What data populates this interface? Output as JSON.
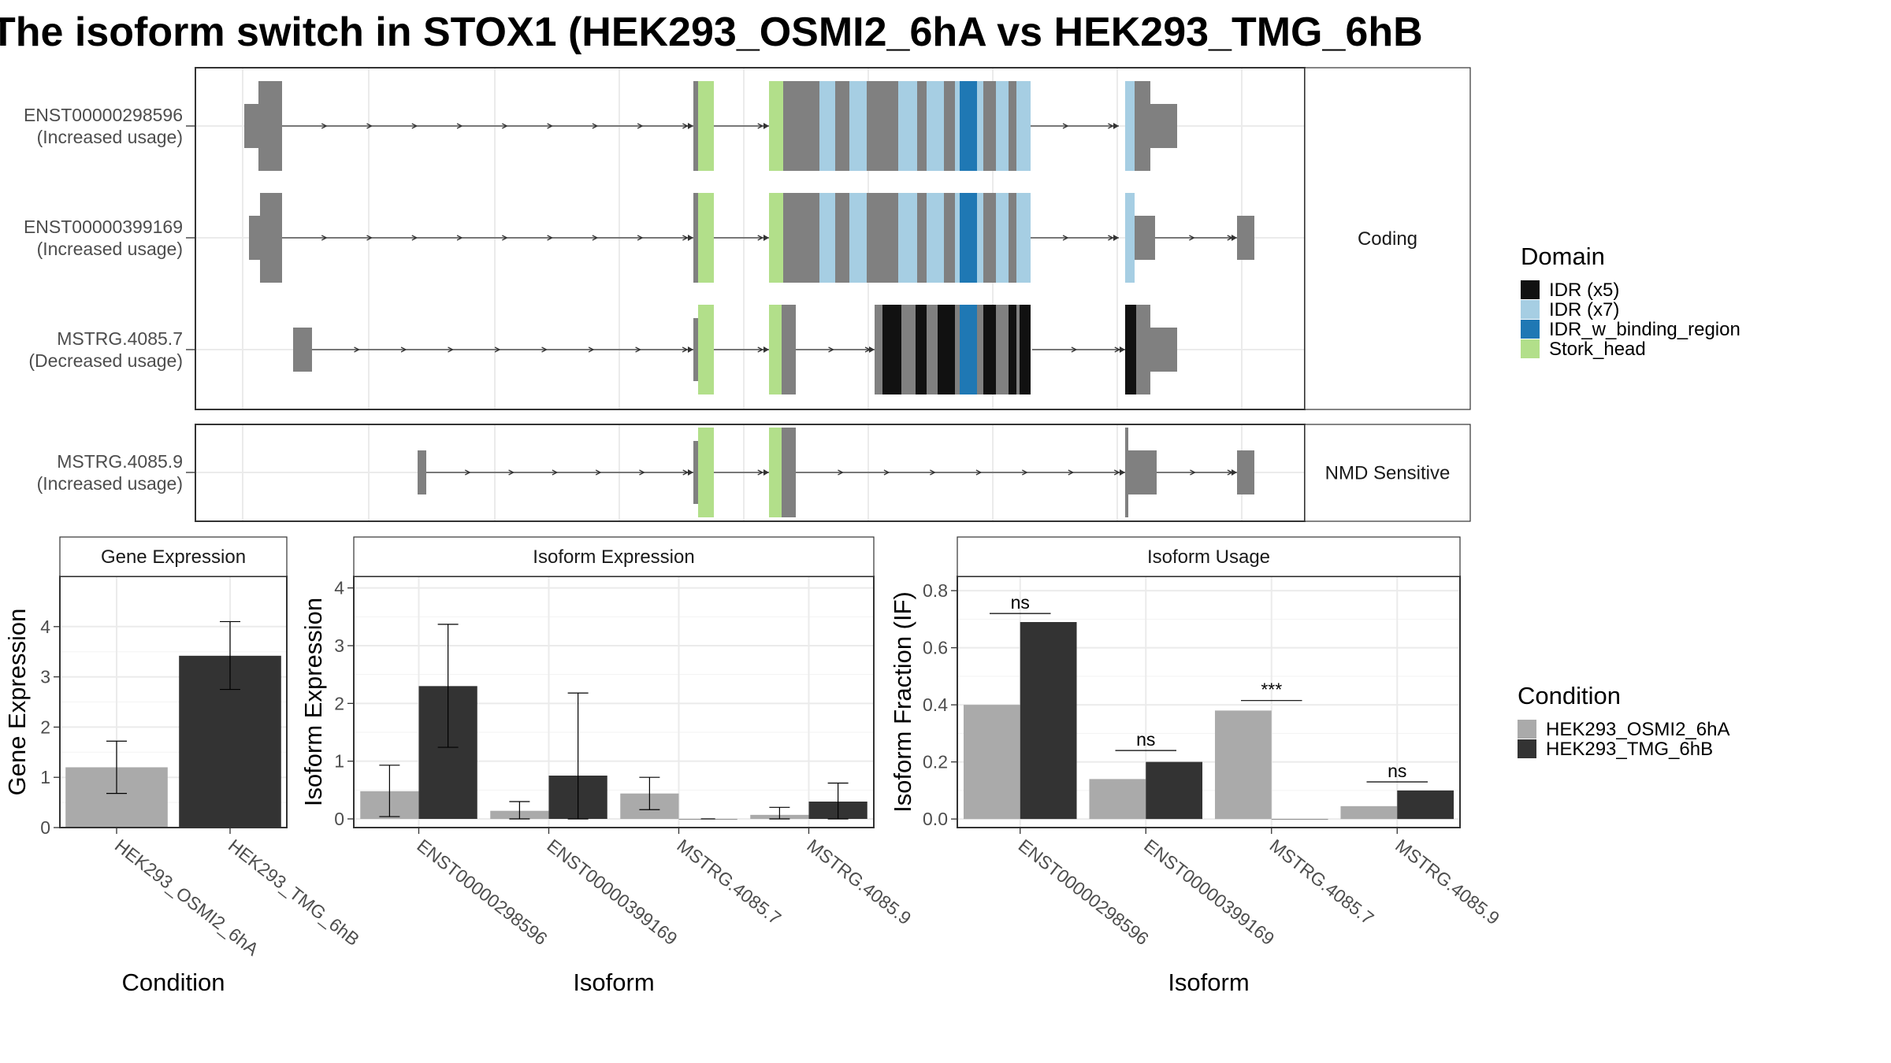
{
  "title": "The isoform switch in STOX1 (HEK293_OSMI2_6hA vs HEK293_TMG_6hB",
  "transcripts": [
    {
      "id": "ENST00000298596",
      "usage": "(Increased usage)",
      "facet": "Coding"
    },
    {
      "id": "ENST00000399169",
      "usage": "(Increased usage)",
      "facet": "Coding"
    },
    {
      "id": "MSTRG.4085.7",
      "usage": "(Decreased usage)",
      "facet": "Coding"
    },
    {
      "id": "MSTRG.4085.9",
      "usage": "(Increased usage)",
      "facet": "NMD Sensitive"
    }
  ],
  "facets": {
    "coding": "Coding",
    "nmd": "NMD Sensitive"
  },
  "legend_domain": {
    "title": "Domain",
    "items": [
      {
        "label": "IDR (x5)",
        "color": "#111111"
      },
      {
        "label": "IDR (x7)",
        "color": "#a6cee3"
      },
      {
        "label": "IDR_w_binding_region",
        "color": "#1f78b4"
      },
      {
        "label": "Stork_head",
        "color": "#b2df8a"
      }
    ]
  },
  "legend_condition": {
    "title": "Condition",
    "items": [
      {
        "label": "HEK293_OSMI2_6hA",
        "color": "#aaaaaa"
      },
      {
        "label": "HEK293_TMG_6hB",
        "color": "#333333"
      }
    ]
  },
  "chart_data": [
    {
      "type": "bar",
      "title": "Gene Expression",
      "xlabel": "Condition",
      "ylabel": "Gene Expression",
      "categories": [
        "HEK293_OSMI2_6hA",
        "HEK293_TMG_6hB"
      ],
      "series": [
        {
          "values": [
            1.2,
            3.42
          ],
          "err_low": [
            0.68,
            2.75
          ],
          "err_high": [
            1.72,
            4.1
          ]
        }
      ],
      "colors": [
        "#aaaaaa",
        "#333333"
      ],
      "ylim": [
        0,
        5
      ],
      "yticks": [
        0,
        1,
        2,
        3,
        4
      ]
    },
    {
      "type": "bar",
      "title": "Isoform Expression",
      "xlabel": "Isoform",
      "ylabel": "Isoform Expression",
      "categories": [
        "ENST00000298596",
        "ENST00000399169",
        "MSTRG.4085.7",
        "MSTRG.4085.9"
      ],
      "series": [
        {
          "name": "HEK293_OSMI2_6hA",
          "values": [
            0.48,
            0.14,
            0.44,
            0.07
          ],
          "err_low": [
            0.04,
            0.0,
            0.16,
            0.0
          ],
          "err_high": [
            0.93,
            0.3,
            0.72,
            0.2
          ]
        },
        {
          "name": "HEK293_TMG_6hB",
          "values": [
            2.3,
            0.75,
            0.0,
            0.3
          ],
          "err_low": [
            1.24,
            0.0,
            0.0,
            0.0
          ],
          "err_high": [
            3.37,
            2.18,
            0.0,
            0.62
          ]
        }
      ],
      "ylim": [
        -0.15,
        4.2
      ],
      "yticks": [
        0,
        1,
        2,
        3,
        4
      ]
    },
    {
      "type": "bar",
      "title": "Isoform Usage",
      "xlabel": "Isoform",
      "ylabel": "Isoform Fraction (IF)",
      "categories": [
        "ENST00000298596",
        "ENST00000399169",
        "MSTRG.4085.7",
        "MSTRG.4085.9"
      ],
      "series": [
        {
          "name": "HEK293_OSMI2_6hA",
          "values": [
            0.4,
            0.14,
            0.38,
            0.045
          ]
        },
        {
          "name": "HEK293_TMG_6hB",
          "values": [
            0.69,
            0.2,
            0.0,
            0.1
          ]
        }
      ],
      "significance": [
        "ns",
        "ns",
        "***",
        "ns"
      ],
      "sig_y": [
        0.72,
        0.24,
        0.415,
        0.13
      ],
      "ylim": [
        -0.03,
        0.85
      ],
      "yticks": [
        0.0,
        0.2,
        0.4,
        0.6,
        0.8
      ],
      "ytick_labels": [
        "0.0",
        "0.2",
        "0.4",
        "0.6",
        "0.8"
      ]
    }
  ]
}
